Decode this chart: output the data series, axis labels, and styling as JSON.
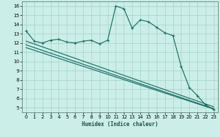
{
  "xlabel": "Humidex (Indice chaleur)",
  "bg_color": "#cceee8",
  "grid_color": "#aad8d0",
  "line_color": "#1a7068",
  "xlim": [
    -0.5,
    23.5
  ],
  "ylim": [
    4.5,
    16.5
  ],
  "xticks": [
    0,
    1,
    2,
    3,
    4,
    5,
    6,
    7,
    8,
    9,
    10,
    11,
    12,
    13,
    14,
    15,
    16,
    17,
    18,
    19,
    20,
    21,
    22,
    23
  ],
  "yticks": [
    5,
    6,
    7,
    8,
    9,
    10,
    11,
    12,
    13,
    14,
    15,
    16
  ],
  "line1_x": [
    0,
    1,
    2,
    3,
    4,
    5,
    6,
    7,
    8,
    9,
    10,
    11,
    12,
    13,
    14,
    15,
    16,
    17,
    18,
    19,
    20,
    21,
    22,
    23
  ],
  "line1_y": [
    13.3,
    12.2,
    12.0,
    12.3,
    12.4,
    12.1,
    12.0,
    12.2,
    12.3,
    11.9,
    12.3,
    16.0,
    15.7,
    13.6,
    14.5,
    14.3,
    13.7,
    13.1,
    12.8,
    9.5,
    7.2,
    6.3,
    5.3,
    4.8
  ],
  "line2_x": [
    0,
    23
  ],
  "line2_y": [
    12.2,
    5.1
  ],
  "line3_x": [
    0,
    23
  ],
  "line3_y": [
    11.8,
    4.9
  ],
  "line4_x": [
    0,
    23
  ],
  "line4_y": [
    11.5,
    4.85
  ]
}
